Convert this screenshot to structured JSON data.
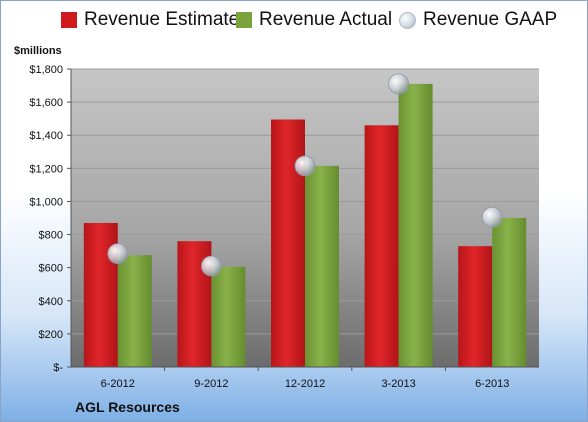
{
  "legend": {
    "estimate": "Revenue Estimate",
    "actual": "Revenue Actual",
    "gaap": "Revenue GAAP"
  },
  "units_label": "$millions",
  "company": "AGL Resources",
  "colors": {
    "estimate": "#d01a1e",
    "actual": "#79a33d",
    "gaap": "#c8ced8",
    "plot_bg_top": "#c4c4c4",
    "plot_bg_bottom": "#6f6f6f"
  },
  "chart_data": {
    "type": "bar",
    "categories": [
      "6-2012",
      "9-2012",
      "12-2012",
      "3-2013",
      "6-2013"
    ],
    "series": [
      {
        "name": "Revenue Estimate",
        "values": [
          870,
          760,
          1495,
          1460,
          730
        ]
      },
      {
        "name": "Revenue Actual",
        "values": [
          675,
          605,
          1215,
          1710,
          900
        ]
      },
      {
        "name": "Revenue GAAP",
        "values": [
          685,
          610,
          1215,
          1710,
          905
        ],
        "style": "marker"
      }
    ],
    "ylim": [
      0,
      1800
    ],
    "yticks": [
      0,
      200,
      400,
      600,
      800,
      1000,
      1200,
      1400,
      1600,
      1800
    ],
    "ytick_labels": [
      "$-",
      "$200",
      "$400",
      "$600",
      "$800",
      "$1,000",
      "$1,200",
      "$1,400",
      "$1,600",
      "$1,800"
    ],
    "grid": true,
    "legend_position": "top"
  }
}
